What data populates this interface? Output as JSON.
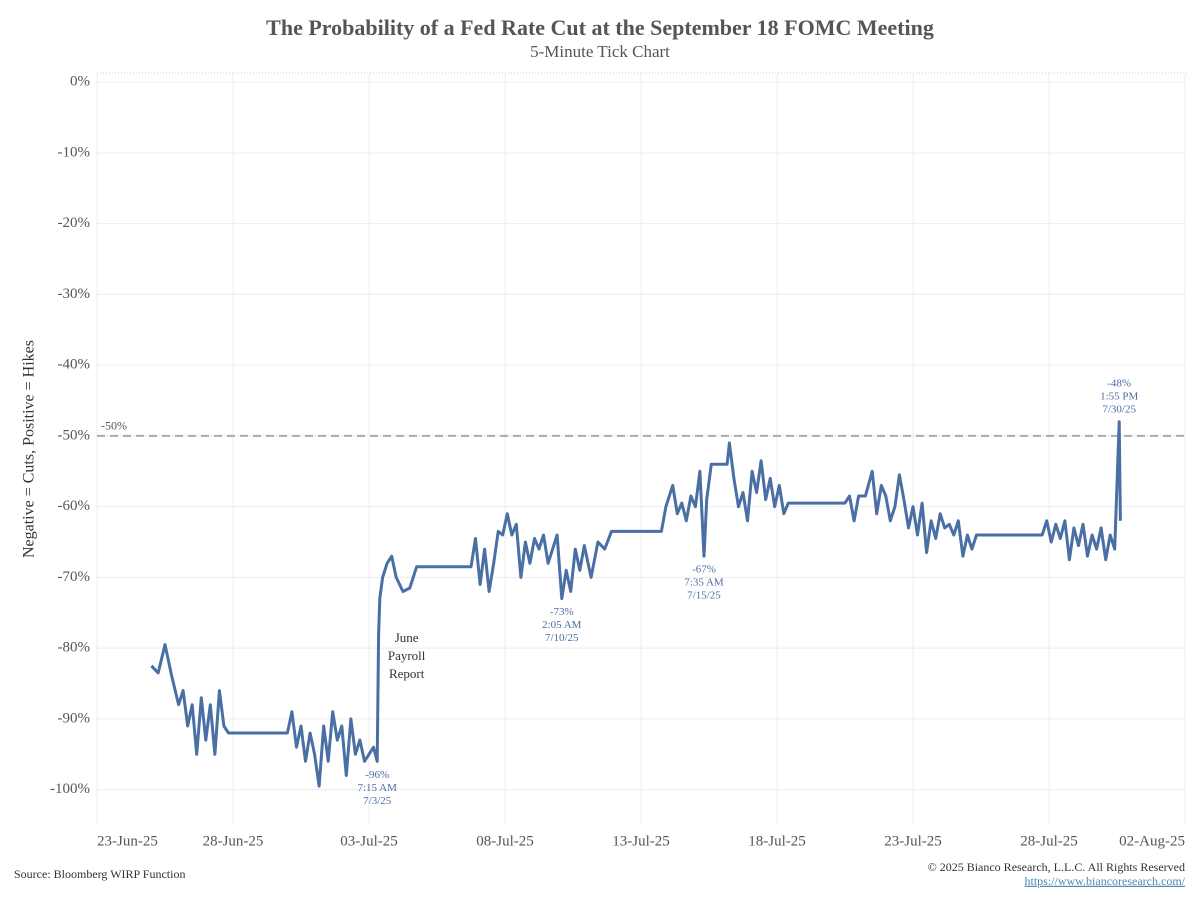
{
  "chart_data": {
    "type": "line",
    "title": "The Probability of a Fed Rate Cut at the September 18 FOMC Meeting",
    "subtitle": "5-Minute Tick Chart",
    "y_label": "Negative = Cuts, Positive = Hikes",
    "source": "Source: Bloomberg WIRP Function",
    "copyright": "© 2025 Bianco Research, L.L.C. All Rights Reserved",
    "url": "https://www.biancoresearch.com/",
    "xlim": [
      "2025-06-23T00:00",
      "2025-08-02T00:00"
    ],
    "xticks": [
      {
        "value": "2025-06-23T00:00",
        "label": "23-Jun-25"
      },
      {
        "value": "2025-06-28T00:00",
        "label": "28-Jun-25"
      },
      {
        "value": "2025-07-03T00:00",
        "label": "03-Jul-25"
      },
      {
        "value": "2025-07-08T00:00",
        "label": "08-Jul-25"
      },
      {
        "value": "2025-07-13T00:00",
        "label": "13-Jul-25"
      },
      {
        "value": "2025-07-18T00:00",
        "label": "18-Jul-25"
      },
      {
        "value": "2025-07-23T00:00",
        "label": "23-Jul-25"
      },
      {
        "value": "2025-07-28T00:00",
        "label": "28-Jul-25"
      },
      {
        "value": "2025-08-02T00:00",
        "label": "02-Aug-25"
      }
    ],
    "ylim": [
      -105,
      1.3
    ],
    "yticks": [
      {
        "value": 0,
        "label": "0%"
      },
      {
        "value": -10,
        "label": "-10%"
      },
      {
        "value": -20,
        "label": "-20%"
      },
      {
        "value": -30,
        "label": "-30%"
      },
      {
        "value": -40,
        "label": "-40%"
      },
      {
        "value": -50,
        "label": "-50%"
      },
      {
        "value": -60,
        "label": "-60%"
      },
      {
        "value": -70,
        "label": "-70%"
      },
      {
        "value": -80,
        "label": "-80%"
      },
      {
        "value": -90,
        "label": "-90%"
      },
      {
        "value": -100,
        "label": "-100%"
      }
    ],
    "grid": true,
    "reference_line": {
      "value": -50,
      "label": "-50%",
      "color": "#aaaaaa"
    },
    "x": [
      "2025-06-25T00:00",
      "2025-06-25T06:00",
      "2025-06-25T12:00",
      "2025-06-25T18:00",
      "2025-06-26T00:00",
      "2025-06-26T04:00",
      "2025-06-26T08:00",
      "2025-06-26T12:00",
      "2025-06-26T16:00",
      "2025-06-26T20:00",
      "2025-06-27T00:00",
      "2025-06-27T04:00",
      "2025-06-27T08:00",
      "2025-06-27T12:00",
      "2025-06-27T16:00",
      "2025-06-27T20:00",
      "2025-06-30T00:00",
      "2025-06-30T04:00",
      "2025-06-30T08:00",
      "2025-06-30T12:00",
      "2025-06-30T16:00",
      "2025-06-30T20:00",
      "2025-07-01T00:00",
      "2025-07-01T04:00",
      "2025-07-01T08:00",
      "2025-07-01T12:00",
      "2025-07-01T16:00",
      "2025-07-01T20:00",
      "2025-07-02T00:00",
      "2025-07-02T04:00",
      "2025-07-02T08:00",
      "2025-07-02T12:00",
      "2025-07-02T16:00",
      "2025-07-02T20:00",
      "2025-07-03T04:00",
      "2025-07-03T07:15",
      "2025-07-03T08:30",
      "2025-07-03T09:30",
      "2025-07-03T12:00",
      "2025-07-03T16:00",
      "2025-07-03T20:00",
      "2025-07-04T00:00",
      "2025-07-04T06:00",
      "2025-07-04T12:00",
      "2025-07-04T18:00",
      "2025-07-06T18:00",
      "2025-07-06T22:00",
      "2025-07-07T02:00",
      "2025-07-07T06:00",
      "2025-07-07T10:00",
      "2025-07-07T14:00",
      "2025-07-07T18:00",
      "2025-07-07T22:00",
      "2025-07-08T02:00",
      "2025-07-08T06:00",
      "2025-07-08T10:00",
      "2025-07-08T14:00",
      "2025-07-08T18:00",
      "2025-07-08T22:00",
      "2025-07-09T02:00",
      "2025-07-09T06:00",
      "2025-07-09T10:00",
      "2025-07-09T14:00",
      "2025-07-09T18:00",
      "2025-07-09T22:00",
      "2025-07-10T02:05",
      "2025-07-10T06:00",
      "2025-07-10T10:00",
      "2025-07-10T14:00",
      "2025-07-10T18:00",
      "2025-07-10T22:00",
      "2025-07-11T04:00",
      "2025-07-11T10:00",
      "2025-07-11T16:00",
      "2025-07-11T22:00",
      "2025-07-13T18:00",
      "2025-07-13T22:00",
      "2025-07-14T04:00",
      "2025-07-14T08:00",
      "2025-07-14T12:00",
      "2025-07-14T16:00",
      "2025-07-14T20:00",
      "2025-07-15T00:00",
      "2025-07-15T04:00",
      "2025-07-15T07:35",
      "2025-07-15T10:00",
      "2025-07-15T14:00",
      "2025-07-15T18:00",
      "2025-07-16T04:00",
      "2025-07-16T06:00",
      "2025-07-16T10:00",
      "2025-07-16T14:00",
      "2025-07-16T18:00",
      "2025-07-16T22:00",
      "2025-07-17T02:00",
      "2025-07-17T06:00",
      "2025-07-17T10:00",
      "2025-07-17T14:00",
      "2025-07-17T18:00",
      "2025-07-17T22:00",
      "2025-07-18T02:00",
      "2025-07-18T06:00",
      "2025-07-18T10:00",
      "2025-07-20T12:00",
      "2025-07-20T16:00",
      "2025-07-20T20:00",
      "2025-07-21T00:00",
      "2025-07-21T06:00",
      "2025-07-21T12:00",
      "2025-07-21T16:00",
      "2025-07-21T20:00",
      "2025-07-22T00:00",
      "2025-07-22T04:00",
      "2025-07-22T08:00",
      "2025-07-22T12:00",
      "2025-07-22T16:00",
      "2025-07-22T20:00",
      "2025-07-23T00:00",
      "2025-07-23T04:00",
      "2025-07-23T08:00",
      "2025-07-23T12:00",
      "2025-07-23T16:00",
      "2025-07-23T20:00",
      "2025-07-24T00:00",
      "2025-07-24T04:00",
      "2025-07-24T08:00",
      "2025-07-24T12:00",
      "2025-07-24T16:00",
      "2025-07-24T20:00",
      "2025-07-25T00:00",
      "2025-07-25T04:00",
      "2025-07-25T08:00",
      "2025-07-27T18:00",
      "2025-07-27T22:00",
      "2025-07-28T02:00",
      "2025-07-28T06:00",
      "2025-07-28T10:00",
      "2025-07-28T14:00",
      "2025-07-28T18:00",
      "2025-07-28T22:00",
      "2025-07-29T02:00",
      "2025-07-29T06:00",
      "2025-07-29T10:00",
      "2025-07-29T14:00",
      "2025-07-29T18:00",
      "2025-07-29T22:00",
      "2025-07-30T02:00",
      "2025-07-30T06:00",
      "2025-07-30T10:00",
      "2025-07-30T13:55",
      "2025-07-30T15:00"
    ],
    "series": [
      {
        "name": "Probability",
        "color": "#4a6fa5",
        "values": [
          -82.5,
          -83.5,
          -79.5,
          -84,
          -88,
          -86,
          -91,
          -88,
          -95,
          -87,
          -93,
          -88,
          -95,
          -86,
          -91,
          -92,
          -92,
          -89,
          -94,
          -91,
          -96,
          -92,
          -95,
          -99.5,
          -91,
          -96,
          -89,
          -93,
          -91,
          -98,
          -90,
          -95,
          -93,
          -96,
          -94,
          -96,
          -78,
          -73,
          -70,
          -68,
          -67,
          -70,
          -72,
          -71.5,
          -68.5,
          -68.5,
          -64.5,
          -71,
          -66,
          -72,
          -68,
          -63.5,
          -64,
          -61,
          -64,
          -62.5,
          -70,
          -65,
          -68,
          -64.5,
          -66,
          -64,
          -68,
          -66,
          -64,
          -73,
          -69,
          -72,
          -66,
          -69,
          -65.5,
          -70,
          -65,
          -66,
          -63.5,
          -63.5,
          -60,
          -57,
          -61,
          -59.5,
          -62,
          -58.5,
          -60,
          -55,
          -67,
          -59,
          -54,
          -54,
          -54,
          -51,
          -56,
          -60,
          -58,
          -62,
          -55,
          -58,
          -53.5,
          -59,
          -56,
          -60,
          -57,
          -61,
          -59.5,
          -59.5,
          -58.5,
          -62,
          -58.5,
          -58.5,
          -55,
          -61,
          -57,
          -58.5,
          -62,
          -60,
          -55.5,
          -59,
          -63,
          -60,
          -64,
          -59.5,
          -66.5,
          -62,
          -64.5,
          -61,
          -63,
          -62.5,
          -64,
          -62,
          -67,
          -64,
          -66,
          -64,
          -64,
          -62,
          -65,
          -62.5,
          -64.5,
          -62,
          -67.5,
          -63,
          -65.5,
          -62.5,
          -67,
          -64,
          -66,
          -63,
          -67.5,
          -64,
          -66,
          -48,
          -62
        ]
      }
    ],
    "annotations": [
      {
        "x": "2025-07-03T07:15",
        "y": -96,
        "position": "below",
        "color": "#4a6fa5",
        "lines": [
          "-96%",
          "7:15 AM",
          "7/3/25"
        ]
      },
      {
        "x": "2025-07-10T02:05",
        "y": -73,
        "position": "below",
        "color": "#4a6fa5",
        "lines": [
          "-73%",
          "2:05 AM",
          "7/10/25"
        ]
      },
      {
        "x": "2025-07-15T07:35",
        "y": -67,
        "position": "below",
        "color": "#4a6fa5",
        "lines": [
          "-67%",
          "7:35 AM",
          "7/15/25"
        ]
      },
      {
        "x": "2025-07-30T13:55",
        "y": -48,
        "position": "above",
        "color": "#4a6fa5",
        "lines": [
          "-48%",
          "1:55 PM",
          "7/30/25"
        ]
      },
      {
        "x": "2025-07-03T08:30",
        "y": -78,
        "position": "right",
        "color": "#333333",
        "lines": [
          "June",
          "Payroll",
          "Report"
        ]
      }
    ]
  }
}
